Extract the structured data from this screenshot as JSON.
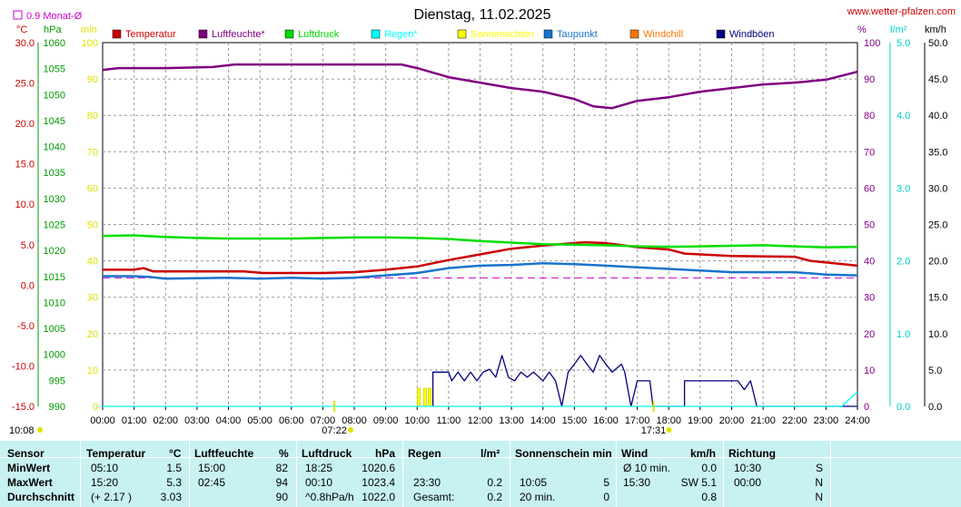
{
  "site": "www.wetter-pfalzen.com",
  "monat_label": "0.9 Monat-Ø",
  "chart_data": {
    "type": "line",
    "title": "Dienstag, 11.02.2025",
    "x_ticks": [
      "00:00",
      "01:00",
      "02:00",
      "03:00",
      "04:00",
      "05:00",
      "06:00",
      "07:00",
      "08:00",
      "09:00",
      "10:00",
      "11:00",
      "12:00",
      "13:00",
      "14:00",
      "15:00",
      "16:00",
      "17:00",
      "18:00",
      "19:00",
      "20:00",
      "21:00",
      "22:00",
      "23:00",
      "24:00"
    ],
    "axes": {
      "temp": {
        "unit": "°C",
        "min": -15,
        "max": 30,
        "ticks": [
          "30.0",
          "25.0",
          "20.0",
          "15.0",
          "10.0",
          "5.0",
          "0.0",
          "-5.0",
          "-10.0",
          "-15.0"
        ],
        "color": "#cc0000"
      },
      "pressure": {
        "unit": "hPa",
        "min": 990,
        "max": 1060,
        "ticks": [
          "1060",
          "1055",
          "1050",
          "1045",
          "1040",
          "1035",
          "1030",
          "1025",
          "1020",
          "1015",
          "1010",
          "1005",
          "1000",
          "995",
          "990"
        ],
        "color": "#009900"
      },
      "sun": {
        "unit": "min",
        "min": 0,
        "max": 100,
        "ticks": [
          "100",
          "90",
          "80",
          "70",
          "60",
          "50",
          "40",
          "30",
          "20",
          "10",
          "0"
        ],
        "color": "#e0e000"
      },
      "humidity": {
        "unit": "%",
        "min": 0,
        "max": 100,
        "ticks": [
          "100",
          "90",
          "80",
          "70",
          "60",
          "50",
          "40",
          "30",
          "20",
          "10",
          "0"
        ],
        "color": "#800080"
      },
      "rain": {
        "unit": "l/m²",
        "min": 0,
        "max": 5,
        "ticks": [
          "5.0",
          "4.0",
          "3.0",
          "2.0",
          "1.0",
          "0.0"
        ],
        "color": "#00cccc"
      },
      "wind": {
        "unit": "km/h",
        "min": 0,
        "max": 50,
        "ticks": [
          "50.0",
          "45.0",
          "40.0",
          "35.0",
          "30.0",
          "25.0",
          "20.0",
          "15.0",
          "10.0",
          "5.0",
          "0.0"
        ],
        "color": "#000000"
      }
    },
    "legend": [
      {
        "name": "Temperatur",
        "color": "#cc0000"
      },
      {
        "name": "Luftfeuchte*",
        "color": "#800080"
      },
      {
        "name": "Luftdruck",
        "color": "#00dd00"
      },
      {
        "name": "Regen*",
        "color": "#00ffff"
      },
      {
        "name": "Sonnenschein",
        "color": "#ffff00"
      },
      {
        "name": "Taupunkt",
        "color": "#1874cd"
      },
      {
        "name": "Windchill",
        "color": "#ff7700"
      },
      {
        "name": "Windböen",
        "color": "#000080"
      }
    ],
    "series": [
      {
        "key": "temperature",
        "axis": "temp",
        "color": "#cc0000",
        "points": [
          [
            0,
            1.9
          ],
          [
            1,
            1.9
          ],
          [
            1.3,
            2.1
          ],
          [
            1.6,
            1.7
          ],
          [
            3,
            1.7
          ],
          [
            4.5,
            1.7
          ],
          [
            5.1,
            1.5
          ],
          [
            7,
            1.5
          ],
          [
            8,
            1.6
          ],
          [
            9,
            1.9
          ],
          [
            10,
            2.3
          ],
          [
            11,
            3.1
          ],
          [
            12,
            3.8
          ],
          [
            13,
            4.5
          ],
          [
            14,
            4.9
          ],
          [
            15,
            5.2
          ],
          [
            15.33,
            5.3
          ],
          [
            16,
            5.2
          ],
          [
            17,
            4.7
          ],
          [
            18,
            4.4
          ],
          [
            18.5,
            3.9
          ],
          [
            20,
            3.6
          ],
          [
            22,
            3.5
          ],
          [
            22.5,
            3.0
          ],
          [
            23,
            2.8
          ],
          [
            24,
            2.4
          ]
        ]
      },
      {
        "key": "dewpoint",
        "axis": "temp",
        "color": "#1874cd",
        "points": [
          [
            0,
            1.1
          ],
          [
            1,
            1.1
          ],
          [
            1.5,
            1.0
          ],
          [
            2,
            0.8
          ],
          [
            4,
            0.9
          ],
          [
            5,
            0.8
          ],
          [
            6,
            0.9
          ],
          [
            7,
            0.8
          ],
          [
            8,
            0.9
          ],
          [
            9,
            1.2
          ],
          [
            10,
            1.5
          ],
          [
            11,
            2.1
          ],
          [
            12,
            2.4
          ],
          [
            13,
            2.5
          ],
          [
            14,
            2.7
          ],
          [
            15,
            2.6
          ],
          [
            16,
            2.4
          ],
          [
            17,
            2.2
          ],
          [
            18,
            2.0
          ],
          [
            19,
            1.8
          ],
          [
            20,
            1.6
          ],
          [
            22,
            1.6
          ],
          [
            23,
            1.3
          ],
          [
            24,
            1.2
          ]
        ]
      },
      {
        "key": "humidity",
        "axis": "humidity",
        "color": "#800080",
        "points": [
          [
            0,
            92.5
          ],
          [
            0.5,
            93
          ],
          [
            2,
            93
          ],
          [
            3.5,
            93.3
          ],
          [
            4.2,
            94
          ],
          [
            9.5,
            94
          ],
          [
            10,
            93
          ],
          [
            11,
            90.5
          ],
          [
            12,
            89
          ],
          [
            13,
            87.5
          ],
          [
            14,
            86.5
          ],
          [
            15,
            84.5
          ],
          [
            15.6,
            82.5
          ],
          [
            16.2,
            82
          ],
          [
            17,
            84
          ],
          [
            18,
            85
          ],
          [
            19,
            86.5
          ],
          [
            20,
            87.5
          ],
          [
            21,
            88.5
          ],
          [
            22,
            89
          ],
          [
            23,
            89.8
          ],
          [
            24,
            92
          ]
        ]
      },
      {
        "key": "pressure",
        "axis": "pressure",
        "color": "#00dd00",
        "points": [
          [
            0,
            1022.8
          ],
          [
            1,
            1022.9
          ],
          [
            2,
            1022.6
          ],
          [
            3,
            1022.4
          ],
          [
            4,
            1022.3
          ],
          [
            5,
            1022.3
          ],
          [
            6,
            1022.3
          ],
          [
            7,
            1022.4
          ],
          [
            8,
            1022.5
          ],
          [
            9,
            1022.5
          ],
          [
            10,
            1022.4
          ],
          [
            11,
            1022.2
          ],
          [
            12,
            1021.8
          ],
          [
            13,
            1021.5
          ],
          [
            14,
            1021.2
          ],
          [
            15,
            1021.1
          ],
          [
            16,
            1021.0
          ],
          [
            17,
            1020.8
          ],
          [
            18,
            1020.7
          ],
          [
            19,
            1020.8
          ],
          [
            20,
            1020.9
          ],
          [
            21,
            1021.0
          ],
          [
            22,
            1020.8
          ],
          [
            23,
            1020.6
          ],
          [
            24,
            1020.7
          ]
        ]
      },
      {
        "key": "wind_gusts",
        "axis": "wind",
        "color": "#000080",
        "step": true,
        "points": [
          [
            10.5,
            0
          ],
          [
            10.5,
            4.7
          ],
          [
            11,
            4.7
          ],
          [
            11.1,
            3.5
          ],
          [
            11.3,
            4.7
          ],
          [
            11.5,
            3.5
          ],
          [
            11.7,
            4.7
          ],
          [
            11.9,
            3.5
          ],
          [
            12.1,
            4.7
          ],
          [
            12.3,
            5.1
          ],
          [
            12.5,
            4.0
          ],
          [
            12.7,
            7.0
          ],
          [
            12.9,
            4.0
          ],
          [
            13.1,
            3.5
          ],
          [
            13.3,
            4.7
          ],
          [
            13.5,
            4.0
          ],
          [
            13.7,
            4.7
          ],
          [
            14,
            3.5
          ],
          [
            14.2,
            4.7
          ],
          [
            14.4,
            3.5
          ],
          [
            14.6,
            0
          ],
          [
            14.8,
            4.7
          ],
          [
            15,
            5.8
          ],
          [
            15.2,
            7.0
          ],
          [
            15.4,
            5.8
          ],
          [
            15.6,
            4.7
          ],
          [
            15.8,
            7.0
          ],
          [
            16,
            5.8
          ],
          [
            16.2,
            4.7
          ],
          [
            16.5,
            5.8
          ],
          [
            16.6,
            4.7
          ],
          [
            16.8,
            0
          ],
          [
            17,
            3.5
          ],
          [
            17.4,
            3.5
          ],
          [
            17.5,
            0
          ],
          [
            18.5,
            0
          ],
          [
            18.5,
            3.5
          ],
          [
            20.2,
            3.5
          ],
          [
            20.4,
            2.3
          ],
          [
            20.6,
            3.5
          ],
          [
            20.8,
            0
          ],
          [
            24,
            0
          ]
        ]
      },
      {
        "key": "rain",
        "axis": "rain",
        "color": "#00ffff",
        "points": [
          [
            0,
            0
          ],
          [
            23.5,
            0
          ],
          [
            23.8,
            0.12
          ],
          [
            24,
            0.2
          ]
        ]
      }
    ],
    "monthly_avg_temp": 0.9,
    "sunshine_bars": [
      [
        10.0,
        5
      ],
      [
        10.2,
        5
      ],
      [
        10.35,
        5
      ]
    ],
    "sunrise": "07:22",
    "sunset": "17:31",
    "day_length": "10:08"
  },
  "table": {
    "headers": {
      "sensor": "Sensor",
      "temperature": "Temperatur",
      "temp_unit": "°C",
      "humidity": "Luftfeuchte",
      "hum_unit": "%",
      "pressure": "Luftdruck",
      "press_unit": "hPa",
      "rain": "Regen",
      "rain_unit": "l/m²",
      "sun": "Sonnenschein min",
      "wind": "Wind",
      "wind_unit": "km/h",
      "direction": "Richtung"
    },
    "rows": [
      {
        "label": "MinWert",
        "t_time": "05:10",
        "t_val": "1.5",
        "h_time": "15:00",
        "h_val": "82",
        "p_time": "18:25",
        "p_val": "1020.6",
        "r_time": "",
        "r_val": "",
        "s_time": "",
        "s_val": "",
        "w_time": "Ø 10 min.",
        "w_val": "0.0",
        "d_time": "10:30",
        "d_val": "S"
      },
      {
        "label": "MaxWert",
        "t_time": "15:20",
        "t_val": "5.3",
        "h_time": "02:45",
        "h_val": "94",
        "p_time": "00:10",
        "p_val": "1023.4",
        "r_time": "23:30",
        "r_val": "0.2",
        "s_time": "10:05",
        "s_val": "5",
        "w_time": "15:30",
        "w_val": "SW 5.1",
        "d_time": "00:00",
        "d_val": "N"
      },
      {
        "label": "Durchschnitt",
        "t_time": "(+ 2.17 )",
        "t_val": "3.03",
        "h_time": "",
        "h_val": "90",
        "p_time": "^0.8hPa/h",
        "p_val": "1022.0",
        "r_time": "Gesamt:",
        "r_val": "0.2",
        "s_time": "20 min.",
        "s_val": "0",
        "w_time": "",
        "w_val": "0.8",
        "d_time": "",
        "d_val": "N"
      }
    ]
  }
}
